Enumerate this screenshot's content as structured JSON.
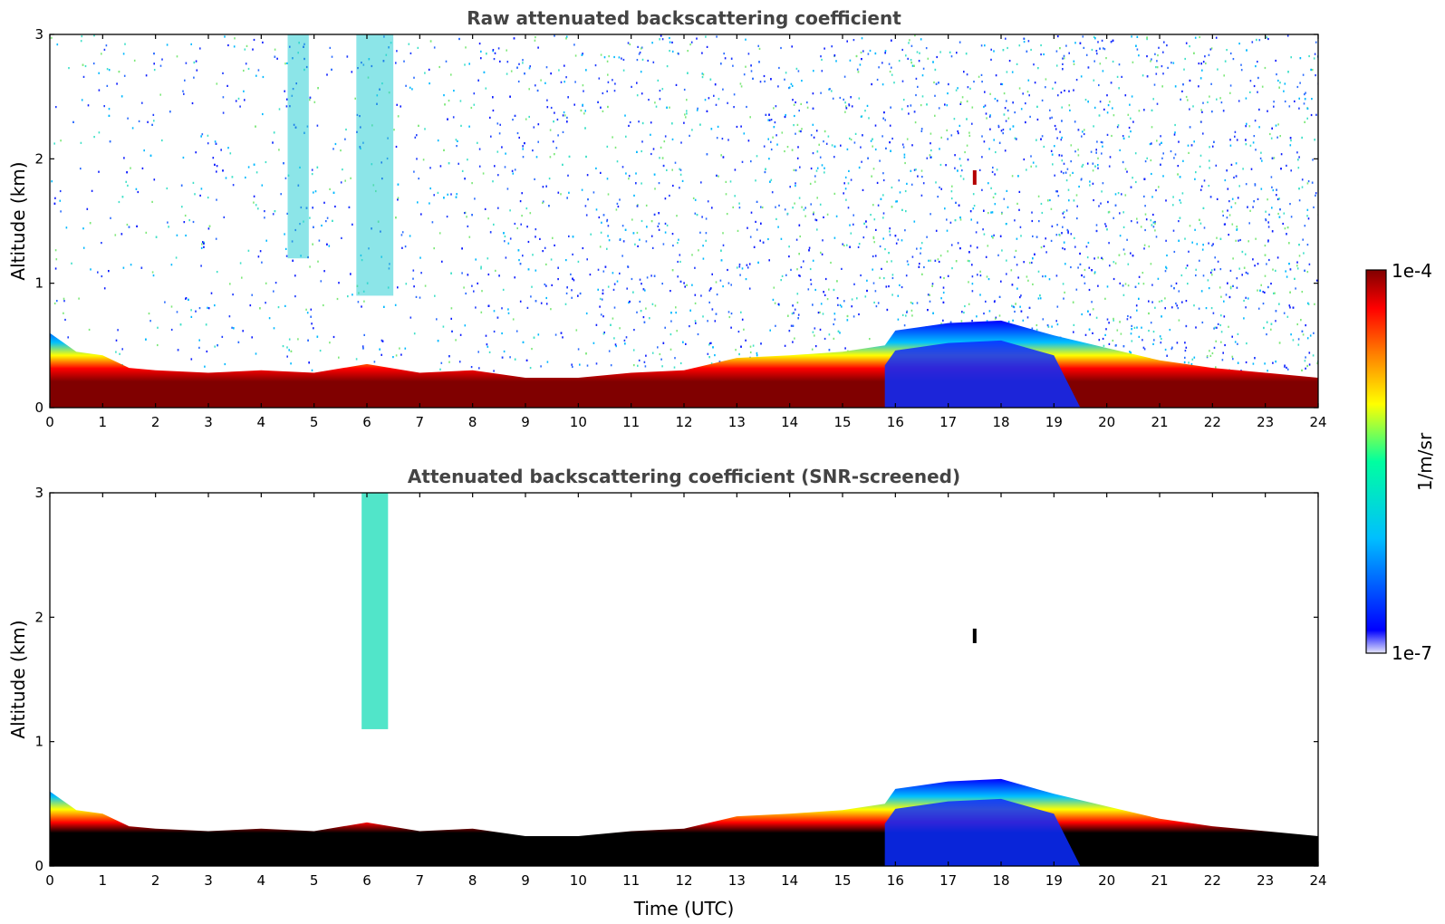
{
  "chart_data": [
    {
      "type": "heatmap",
      "title": "Raw attenuated backscattering coefficient",
      "xlabel": "",
      "ylabel": "Altitude (km)",
      "xlim": [
        0,
        24
      ],
      "ylim": [
        0,
        3
      ],
      "x_ticks": [
        "0",
        "1",
        "2",
        "3",
        "4",
        "5",
        "6",
        "7",
        "8",
        "9",
        "10",
        "11",
        "12",
        "13",
        "14",
        "15",
        "16",
        "17",
        "18",
        "19",
        "20",
        "21",
        "22",
        "23",
        "24"
      ],
      "y_ticks": [
        "0",
        "1",
        "2",
        "3"
      ],
      "boundary_layer_top_km": {
        "time_utc": [
          0,
          0.5,
          1,
          1.5,
          2,
          3,
          4,
          5,
          6,
          7,
          8,
          9,
          10,
          11,
          12,
          13,
          14,
          15,
          15.8,
          16,
          17,
          18,
          19,
          20,
          21,
          22,
          23,
          24
        ],
        "altitude": [
          0.6,
          0.45,
          0.42,
          0.32,
          0.3,
          0.28,
          0.3,
          0.28,
          0.35,
          0.28,
          0.3,
          0.24,
          0.24,
          0.28,
          0.3,
          0.4,
          0.42,
          0.45,
          0.5,
          0.62,
          0.68,
          0.7,
          0.58,
          0.48,
          0.38,
          0.32,
          0.28,
          0.24
        ]
      },
      "aerosol_plumes": [
        {
          "time_start": 4.5,
          "time_end": 4.9,
          "alt_min": 1.2,
          "alt_max": 3.0
        },
        {
          "time_start": 5.8,
          "time_end": 6.5,
          "alt_min": 0.9,
          "alt_max": 3.0
        }
      ],
      "isolated_features": [
        {
          "time": 17.5,
          "altitude": 1.85
        }
      ]
    },
    {
      "type": "heatmap",
      "title": "Attenuated backscattering coefficient (SNR-screened)",
      "xlabel": "Time (UTC)",
      "ylabel": "Altitude (km)",
      "xlim": [
        0,
        24
      ],
      "ylim": [
        0,
        3
      ],
      "x_ticks": [
        "0",
        "1",
        "2",
        "3",
        "4",
        "5",
        "6",
        "7",
        "8",
        "9",
        "10",
        "11",
        "12",
        "13",
        "14",
        "15",
        "16",
        "17",
        "18",
        "19",
        "20",
        "21",
        "22",
        "23",
        "24"
      ],
      "y_ticks": [
        "0",
        "1",
        "2",
        "3"
      ],
      "boundary_layer_top_km": {
        "time_utc": [
          0,
          0.5,
          1,
          1.5,
          2,
          3,
          4,
          5,
          6,
          7,
          8,
          9,
          10,
          11,
          12,
          13,
          14,
          15,
          15.8,
          16,
          17,
          18,
          19,
          20,
          21,
          22,
          23,
          24
        ],
        "altitude": [
          0.6,
          0.45,
          0.42,
          0.32,
          0.3,
          0.28,
          0.3,
          0.28,
          0.35,
          0.28,
          0.3,
          0.24,
          0.24,
          0.28,
          0.3,
          0.4,
          0.42,
          0.45,
          0.5,
          0.62,
          0.68,
          0.7,
          0.58,
          0.48,
          0.38,
          0.32,
          0.28,
          0.24
        ]
      },
      "aerosol_plumes": [
        {
          "time_start": 5.9,
          "time_end": 6.4,
          "alt_min": 1.1,
          "alt_max": 3.0
        }
      ],
      "isolated_features": [
        {
          "time": 17.5,
          "altitude": 1.85
        }
      ]
    }
  ],
  "colorbar": {
    "max_label": "1e-4",
    "min_label": "1e-7",
    "units_label": "1/m/sr",
    "colors": [
      "#e6e6fa",
      "#0000ff",
      "#00bfff",
      "#00ffa0",
      "#ffff00",
      "#ff8000",
      "#ff0000",
      "#800000"
    ]
  }
}
